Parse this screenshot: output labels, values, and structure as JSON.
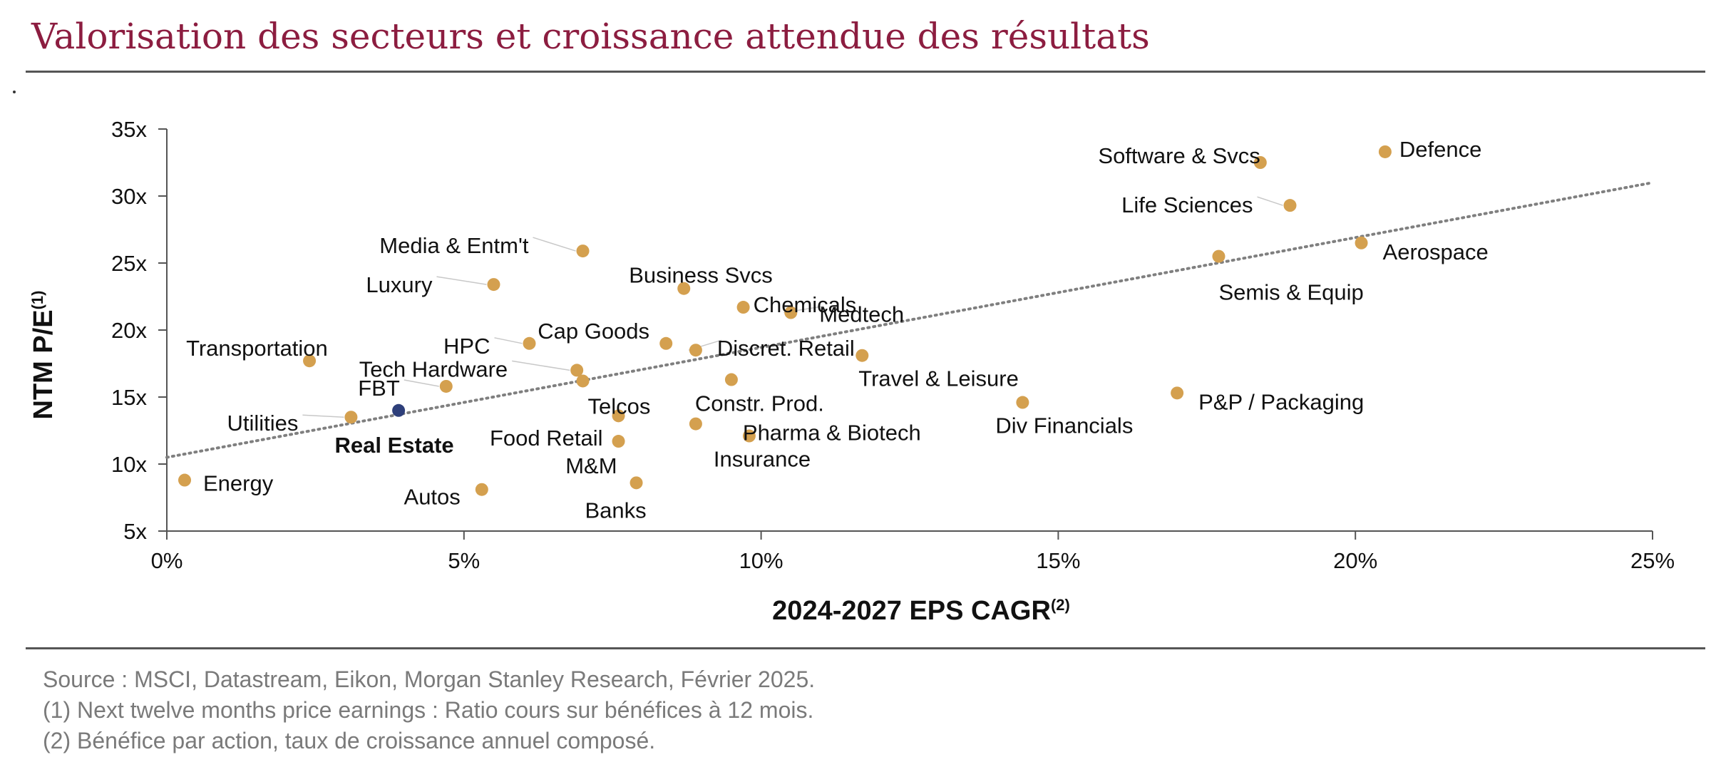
{
  "page": {
    "title": "Valorisation des secteurs et croissance attendue des résultats",
    "stray_mark": "."
  },
  "chart_data": {
    "type": "scatter",
    "title": "",
    "xlabel": "2024-2027 EPS CAGR",
    "xlabel_sup": "(2)",
    "ylabel": "NTM P/E",
    "ylabel_sup": "(1)",
    "xlim": [
      0,
      25
    ],
    "ylim": [
      5,
      35
    ],
    "x_ticks": [
      0,
      5,
      10,
      15,
      20,
      25
    ],
    "x_tick_labels": [
      "0%",
      "5%",
      "10%",
      "15%",
      "20%",
      "25%"
    ],
    "y_ticks": [
      5,
      10,
      15,
      20,
      25,
      30,
      35
    ],
    "y_tick_labels": [
      "5x",
      "10x",
      "15x",
      "20x",
      "25x",
      "30x",
      "35x"
    ],
    "grid": false,
    "point_color": "#d4a04f",
    "highlight_color": "#2e3f7a",
    "trendline": {
      "x": [
        0,
        25
      ],
      "y": [
        10.5,
        31.0
      ],
      "style": "dotted",
      "color": "#7f7f7f"
    },
    "points": [
      {
        "name": "Defence",
        "x": 20.5,
        "y": 33.3,
        "anchor": "start",
        "dx": 20,
        "dy": -4
      },
      {
        "name": "Software & Svcs",
        "x": 18.4,
        "y": 32.5,
        "anchor": "end",
        "dx": 0,
        "dy": -10
      },
      {
        "name": "Life Sciences",
        "x": 18.9,
        "y": 29.3,
        "anchor": "end",
        "dx": -52,
        "dy": -1,
        "leader": true
      },
      {
        "name": "Aerospace",
        "x": 20.1,
        "y": 26.5,
        "anchor": "start",
        "dx": 30,
        "dy": 12
      },
      {
        "name": "Semis & Equip",
        "x": 17.7,
        "y": 25.5,
        "anchor": "start",
        "dx": 0,
        "dy": 50
      },
      {
        "name": "Media & Entm't",
        "x": 7.0,
        "y": 25.9,
        "anchor": "end",
        "dx": -76,
        "dy": -8,
        "leader": true
      },
      {
        "name": "Luxury",
        "x": 5.5,
        "y": 23.4,
        "anchor": "end",
        "dx": -86,
        "dy": 0,
        "leader": true
      },
      {
        "name": "Business Svcs",
        "x": 8.7,
        "y": 23.1,
        "anchor": "start",
        "dx": -77,
        "dy": -19
      },
      {
        "name": "Chemicals",
        "x": 9.7,
        "y": 21.7,
        "anchor": "start",
        "dx": 14,
        "dy": -4
      },
      {
        "name": "Medtech",
        "x": 10.5,
        "y": 21.3,
        "anchor": "start",
        "dx": 40,
        "dy": 2,
        "leader": true
      },
      {
        "name": "Cap Goods",
        "x": 8.4,
        "y": 19.0,
        "anchor": "start",
        "dx": -180,
        "dy": -18
      },
      {
        "name": "HPC",
        "x": 6.1,
        "y": 19.0,
        "anchor": "end",
        "dx": -55,
        "dy": 3,
        "leader": true
      },
      {
        "name": "Discret. Retail",
        "x": 8.9,
        "y": 18.5,
        "anchor": "start",
        "dx": 30,
        "dy": -3,
        "leader": true
      },
      {
        "name": "Transportation",
        "x": 2.4,
        "y": 17.7,
        "anchor": "start",
        "dx": -173,
        "dy": -18
      },
      {
        "name": "Tech Hardware",
        "x": 6.9,
        "y": 17.0,
        "anchor": "end",
        "dx": -97,
        "dy": -2,
        "leader": true
      },
      {
        "name": "FBT",
        "x": 4.7,
        "y": 15.8,
        "anchor": "end",
        "dx": -65,
        "dy": 2,
        "leader": true
      },
      {
        "name": "Travel & Leisure",
        "x": 11.7,
        "y": 18.1,
        "anchor": "start",
        "dx": -5,
        "dy": 32
      },
      {
        "name": "",
        "x": 7.0,
        "y": 16.2
      },
      {
        "name": "Constr. Prod.",
        "x": 9.5,
        "y": 16.3,
        "anchor": "start",
        "dx": -51,
        "dy": 33
      },
      {
        "name": "Div Financials",
        "x": 14.4,
        "y": 14.6,
        "anchor": "start",
        "dx": -38,
        "dy": 32
      },
      {
        "name": "P&P / Packaging",
        "x": 17.0,
        "y": 15.3,
        "anchor": "start",
        "dx": 30,
        "dy": 12
      },
      {
        "name": "Utilities",
        "x": 3.1,
        "y": 13.5,
        "anchor": "end",
        "dx": -74,
        "dy": 8,
        "leader": true
      },
      {
        "name": "Real Estate",
        "x": 3.9,
        "y": 14.0,
        "anchor": "middle",
        "dx": -6,
        "dy": 48,
        "highlight": true
      },
      {
        "name": "Telcos",
        "x": 7.6,
        "y": 13.6,
        "anchor": "start",
        "dx": -43,
        "dy": -14
      },
      {
        "name": "Pharma & Biotech",
        "x": 8.9,
        "y": 13.0,
        "anchor": "start",
        "dx": 66,
        "dy": 12
      },
      {
        "name": "Food Retail",
        "x": 7.6,
        "y": 11.7,
        "anchor": "end",
        "dx": -22,
        "dy": -5
      },
      {
        "name": "Insurance",
        "x": 9.8,
        "y": 12.1,
        "anchor": "start",
        "dx": -50,
        "dy": 32
      },
      {
        "name": "M&M",
        "x": 7.6,
        "y": 11.7,
        "anchor": "end",
        "dx": -2,
        "dy": 34,
        "hidden_point": true
      },
      {
        "name": "Energy",
        "x": 0.3,
        "y": 8.8,
        "anchor": "start",
        "dx": 26,
        "dy": 4
      },
      {
        "name": "Autos",
        "x": 5.3,
        "y": 8.1,
        "anchor": "end",
        "dx": -30,
        "dy": 10
      },
      {
        "name": "Banks",
        "x": 7.9,
        "y": 8.6,
        "anchor": "middle",
        "dx": -29,
        "dy": 38
      }
    ]
  },
  "footnotes": [
    "Source : MSCI, Datastream, Eikon, Morgan Stanley Research, Février 2025.",
    "(1)  Next twelve months price earnings : Ratio cours sur bénéfices à 12 mois.",
    "(2)  Bénéfice par action, taux de croissance annuel composé."
  ]
}
